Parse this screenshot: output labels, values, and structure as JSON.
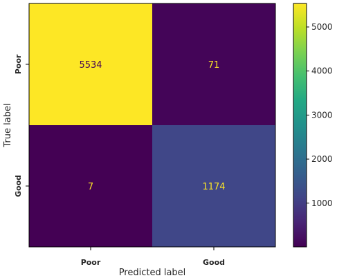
{
  "chart_data": {
    "type": "heatmap",
    "rows": [
      "Poor",
      "Good"
    ],
    "columns": [
      "Poor",
      "Good"
    ],
    "values": [
      [
        5534,
        71
      ],
      [
        7,
        1174
      ]
    ],
    "xlabel": "Predicted label",
    "ylabel": "True label",
    "colorbar": {
      "range": [
        7,
        5534
      ],
      "ticks": [
        1000,
        2000,
        3000,
        4000,
        5000
      ],
      "colormap": "viridis"
    },
    "cell_text_colors": {
      "light_cell": "#440154",
      "dark_cell": "#fde725"
    }
  }
}
